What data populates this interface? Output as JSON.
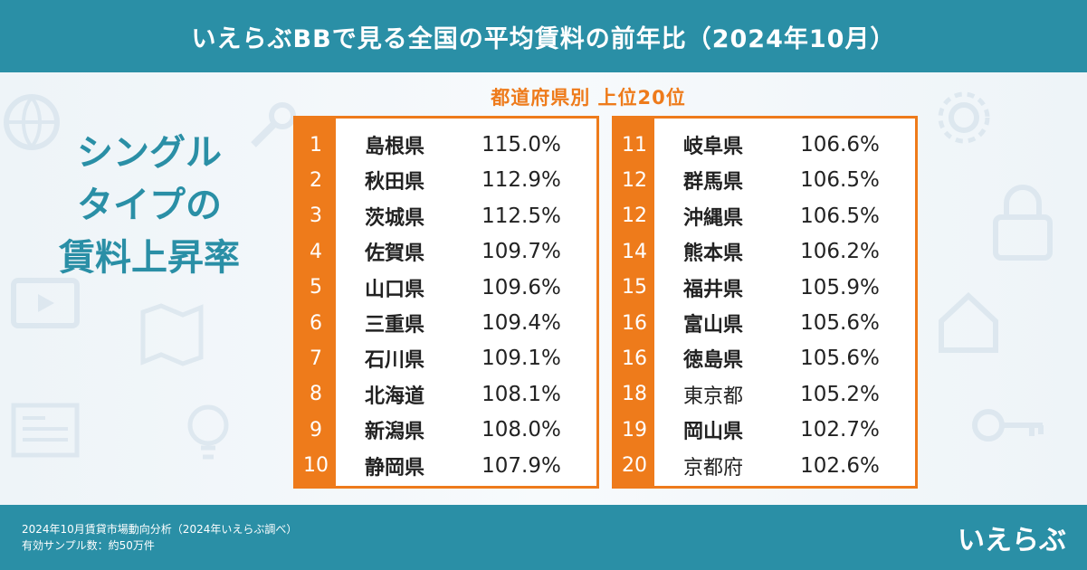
{
  "header": {
    "title": "いえらぶBBで見る全国の平均賃料の前年比（2024年10月）"
  },
  "side_title": {
    "line1": "シングル",
    "line2": "タイプの",
    "line3": "賃料上昇率"
  },
  "subhead": "都道府県別 上位20位",
  "left_rows": [
    {
      "rank": "1",
      "pref": "島根県",
      "pct": "115.0%",
      "bold": true
    },
    {
      "rank": "2",
      "pref": "秋田県",
      "pct": "112.9%",
      "bold": true
    },
    {
      "rank": "3",
      "pref": "茨城県",
      "pct": "112.5%",
      "bold": true
    },
    {
      "rank": "4",
      "pref": "佐賀県",
      "pct": "109.7%",
      "bold": true
    },
    {
      "rank": "5",
      "pref": "山口県",
      "pct": "109.6%",
      "bold": true
    },
    {
      "rank": "6",
      "pref": "三重県",
      "pct": "109.4%",
      "bold": true
    },
    {
      "rank": "7",
      "pref": "石川県",
      "pct": "109.1%",
      "bold": true
    },
    {
      "rank": "8",
      "pref": "北海道",
      "pct": "108.1%",
      "bold": true
    },
    {
      "rank": "9",
      "pref": "新潟県",
      "pct": "108.0%",
      "bold": true
    },
    {
      "rank": "10",
      "pref": "静岡県",
      "pct": "107.9%",
      "bold": true
    }
  ],
  "right_rows": [
    {
      "rank": "11",
      "pref": "岐阜県",
      "pct": "106.6%",
      "bold": true
    },
    {
      "rank": "12",
      "pref": "群馬県",
      "pct": "106.5%",
      "bold": true
    },
    {
      "rank": "12",
      "pref": "沖縄県",
      "pct": "106.5%",
      "bold": true
    },
    {
      "rank": "14",
      "pref": "熊本県",
      "pct": "106.2%",
      "bold": true
    },
    {
      "rank": "15",
      "pref": "福井県",
      "pct": "105.9%",
      "bold": true
    },
    {
      "rank": "16",
      "pref": "富山県",
      "pct": "105.6%",
      "bold": true
    },
    {
      "rank": "16",
      "pref": "徳島県",
      "pct": "105.6%",
      "bold": true
    },
    {
      "rank": "18",
      "pref": "東京都",
      "pct": "105.2%",
      "bold": false
    },
    {
      "rank": "19",
      "pref": "岡山県",
      "pct": "102.7%",
      "bold": true
    },
    {
      "rank": "20",
      "pref": "京都府",
      "pct": "102.6%",
      "bold": false
    }
  ],
  "footer": {
    "note1": "2024年10月賃貸市場動向分析（2024年いえらぶ調べ）",
    "note2": "有効サンプル数：約50万件",
    "logo": "いえらぶ"
  },
  "colors": {
    "teal": "#2a8fa6",
    "orange": "#ee7b1b"
  },
  "icons": [
    "globe-icon",
    "wrench-icon",
    "lock-icon",
    "video-icon",
    "map-icon",
    "newspaper-icon",
    "lightbulb-icon",
    "house-icon",
    "key-icon",
    "gear-icon"
  ]
}
